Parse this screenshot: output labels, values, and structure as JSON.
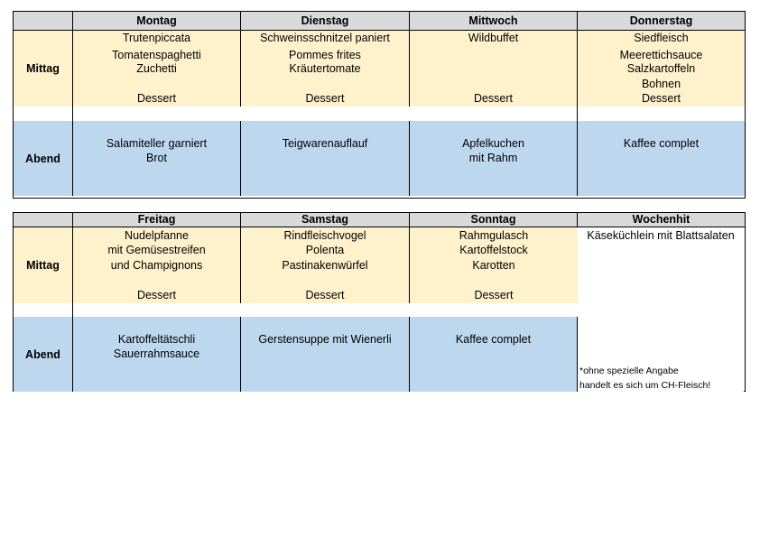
{
  "week1": {
    "days": [
      "Montag",
      "Dienstag",
      "Mittwoch",
      "Donnerstag"
    ],
    "mittag_label": "Mittag",
    "abend_label": "Abend",
    "mittag": [
      {
        "l1": "Trutenpiccata",
        "l2": "Tomatenspaghetti",
        "l3": "Zuchetti",
        "l4": "",
        "dessert": "Dessert"
      },
      {
        "l1": "Schweinsschnitzel paniert",
        "l2": "Pommes frites",
        "l3": "Kräutertomate",
        "l4": "",
        "dessert": "Dessert"
      },
      {
        "l1": "Wildbuffet",
        "l2": "",
        "l3": "",
        "l4": "",
        "dessert": "Dessert"
      },
      {
        "l1": "Siedfleisch",
        "l2": "Meerettichsauce",
        "l3": "Salzkartoffeln",
        "l4": "Bohnen",
        "dessert": "Dessert"
      }
    ],
    "abend": [
      {
        "l1": "Salamiteller garniert",
        "l2": "Brot"
      },
      {
        "l1": "Teigwarenauflauf",
        "l2": ""
      },
      {
        "l1": "Apfelkuchen",
        "l2": "mit Rahm"
      },
      {
        "l1": "Kaffee complet",
        "l2": ""
      }
    ]
  },
  "week2": {
    "days": [
      "Freitag",
      "Samstag",
      "Sonntag",
      "Wochenhit"
    ],
    "mittag_label": "Mittag",
    "abend_label": "Abend",
    "mittag": [
      {
        "l1": "Nudelpfanne",
        "l2": "mit Gemüsestreifen",
        "l3": "und Champignons",
        "dessert": "Dessert"
      },
      {
        "l1": "Rindfleischvogel",
        "l2": "Polenta",
        "l3": "Pastinakenwürfel",
        "dessert": "Dessert"
      },
      {
        "l1": "Rahmgulasch",
        "l2": "Kartoffelstock",
        "l3": "Karotten",
        "dessert": "Dessert"
      }
    ],
    "abend": [
      {
        "l1": "Kartoffeltätschli",
        "l2": "Sauerrahmsauce"
      },
      {
        "l1": "Gerstensuppe mit Wienerli",
        "l2": ""
      },
      {
        "l1": "Kaffee complet",
        "l2": ""
      }
    ],
    "wochenhit": "Käseküchlein mit Blattsalaten",
    "note_line1": "*ohne spezielle Angabe",
    "note_line2": "handelt es sich um CH-Fleisch!"
  }
}
